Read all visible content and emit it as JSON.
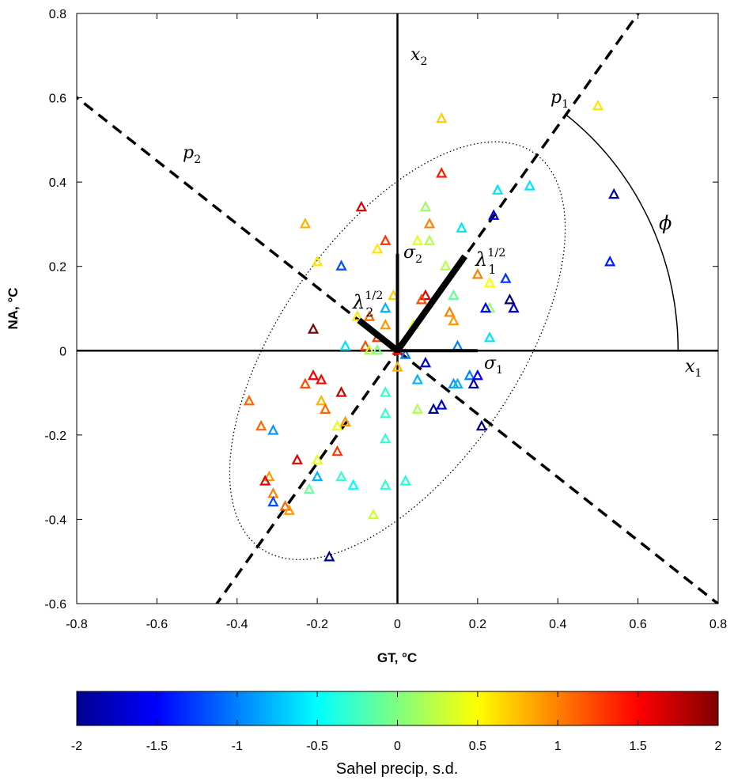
{
  "chart_data": {
    "type": "scatter",
    "xlabel": "GT,  °C",
    "ylabel": "NA,  °C",
    "xlim": [
      -0.8,
      0.8
    ],
    "ylim": [
      -0.6,
      0.8
    ],
    "x_ticks": [
      -0.8,
      -0.6,
      -0.4,
      -0.2,
      0,
      0.2,
      0.4,
      0.6,
      0.8
    ],
    "y_ticks": [
      -0.6,
      -0.4,
      -0.2,
      0,
      0.2,
      0.4,
      0.6,
      0.8
    ],
    "x_tick_labels": [
      "-0.8",
      "-0.6",
      "-0.4",
      "-0.2",
      "0",
      "0.2",
      "0.4",
      "0.6",
      "0.8"
    ],
    "y_tick_labels": [
      "-0.6",
      "-0.4",
      "-0.2",
      "0",
      "0.2",
      "0.4",
      "0.6",
      "0.8"
    ],
    "marker": "triangle",
    "colorbar": {
      "label": "Sahel precip, s.d.",
      "range": [
        -2,
        2
      ],
      "ticks": [
        -2,
        -1.5,
        -1,
        -0.5,
        0,
        0.5,
        1,
        1.5,
        2
      ],
      "tick_labels": [
        "-2",
        "-1.5",
        "-1",
        "-0.5",
        "0",
        "0.5",
        "1",
        "1.5",
        "2"
      ],
      "colormap": "jet"
    },
    "annotations": {
      "x1": "x",
      "x1_sub": "1",
      "x2": "x",
      "x2_sub": "2",
      "p1": "p",
      "p1_sub": "1",
      "p2": "p",
      "p2_sub": "2",
      "sigma1": "σ",
      "sigma1_sub": "1",
      "sigma2": "σ",
      "sigma2_sub": "2",
      "lambda1": "λ",
      "lambda1_sup": "1/2",
      "lambda1_sub": "1",
      "lambda2": "λ",
      "lambda2_sup": "1/2",
      "lambda2_sub": "2",
      "phi": "ϕ"
    },
    "construction": {
      "phi_deg": 53.1,
      "sigma1": 0.2,
      "sigma2": 0.23,
      "lambda1_sqrt": 0.28,
      "lambda2_sqrt": 0.12,
      "ellipse_a": 0.58,
      "ellipse_b": 0.29,
      "phi_arc_radius": 0.7
    },
    "points": [
      {
        "x": 0.5,
        "y": 0.58,
        "c": 0.6
      },
      {
        "x": 0.11,
        "y": 0.55,
        "c": 0.7
      },
      {
        "x": 0.11,
        "y": 0.42,
        "c": 1.4
      },
      {
        "x": 0.54,
        "y": 0.37,
        "c": -1.9
      },
      {
        "x": 0.33,
        "y": 0.39,
        "c": -0.6
      },
      {
        "x": 0.25,
        "y": 0.38,
        "c": -0.6
      },
      {
        "x": 0.24,
        "y": 0.32,
        "c": -1.6
      },
      {
        "x": 0.53,
        "y": 0.21,
        "c": -1.4
      },
      {
        "x": 0.07,
        "y": 0.34,
        "c": 0.1
      },
      {
        "x": -0.09,
        "y": 0.34,
        "c": 1.6
      },
      {
        "x": -0.23,
        "y": 0.3,
        "c": 0.8
      },
      {
        "x": 0.08,
        "y": 0.3,
        "c": 1.0
      },
      {
        "x": 0.16,
        "y": 0.29,
        "c": -0.6
      },
      {
        "x": -0.03,
        "y": 0.26,
        "c": 1.3
      },
      {
        "x": 0.05,
        "y": 0.26,
        "c": 0.4
      },
      {
        "x": 0.08,
        "y": 0.26,
        "c": 0.2
      },
      {
        "x": -0.05,
        "y": 0.24,
        "c": 0.6
      },
      {
        "x": -0.2,
        "y": 0.21,
        "c": 0.6
      },
      {
        "x": -0.14,
        "y": 0.2,
        "c": -1.2
      },
      {
        "x": 0.12,
        "y": 0.2,
        "c": 0.2
      },
      {
        "x": 0.2,
        "y": 0.18,
        "c": 1.0
      },
      {
        "x": 0.27,
        "y": 0.17,
        "c": -1.3
      },
      {
        "x": 0.23,
        "y": 0.16,
        "c": 0.5
      },
      {
        "x": -0.01,
        "y": 0.13,
        "c": 0.7
      },
      {
        "x": 0.07,
        "y": 0.13,
        "c": 1.6
      },
      {
        "x": 0.06,
        "y": 0.12,
        "c": 1.2
      },
      {
        "x": 0.14,
        "y": 0.13,
        "c": -0.1
      },
      {
        "x": -0.03,
        "y": 0.1,
        "c": -0.8
      },
      {
        "x": 0.23,
        "y": 0.1,
        "c": 0.1
      },
      {
        "x": 0.22,
        "y": 0.1,
        "c": -1.5
      },
      {
        "x": 0.29,
        "y": 0.1,
        "c": -1.7
      },
      {
        "x": 0.28,
        "y": 0.12,
        "c": -2.0
      },
      {
        "x": 0.13,
        "y": 0.09,
        "c": 1.0
      },
      {
        "x": 0.14,
        "y": 0.07,
        "c": 0.9
      },
      {
        "x": -0.07,
        "y": 0.08,
        "c": 1.1
      },
      {
        "x": -0.1,
        "y": 0.08,
        "c": 0.6
      },
      {
        "x": -0.03,
        "y": 0.06,
        "c": 0.9
      },
      {
        "x": 0.04,
        "y": 0.06,
        "c": 0.4
      },
      {
        "x": -0.21,
        "y": 0.05,
        "c": 2.0
      },
      {
        "x": -0.05,
        "y": 0.03,
        "c": 1.3
      },
      {
        "x": -0.13,
        "y": 0.01,
        "c": -0.6
      },
      {
        "x": -0.08,
        "y": 0.01,
        "c": 1.2
      },
      {
        "x": 0.15,
        "y": 0.01,
        "c": -1.0
      },
      {
        "x": 0.23,
        "y": 0.03,
        "c": -0.6
      },
      {
        "x": -0.07,
        "y": 0.0,
        "c": 0.2
      },
      {
        "x": -0.05,
        "y": 0.0,
        "c": 0.0
      },
      {
        "x": 0.0,
        "y": 0.0,
        "c": 1.4
      },
      {
        "x": 0.02,
        "y": -0.01,
        "c": -1.0
      },
      {
        "x": 0.07,
        "y": -0.03,
        "c": -1.7
      },
      {
        "x": 0.05,
        "y": -0.07,
        "c": -0.8
      },
      {
        "x": 0.18,
        "y": -0.06,
        "c": -1.0
      },
      {
        "x": 0.2,
        "y": -0.06,
        "c": -1.5
      },
      {
        "x": 0.19,
        "y": -0.08,
        "c": -1.8
      },
      {
        "x": 0.14,
        "y": -0.08,
        "c": -0.9
      },
      {
        "x": 0.15,
        "y": -0.08,
        "c": -0.8
      },
      {
        "x": 0.0,
        "y": -0.04,
        "c": 0.8
      },
      {
        "x": -0.03,
        "y": -0.1,
        "c": -0.3
      },
      {
        "x": -0.21,
        "y": -0.06,
        "c": 1.5
      },
      {
        "x": -0.19,
        "y": -0.07,
        "c": 1.5
      },
      {
        "x": -0.23,
        "y": -0.08,
        "c": 1.2
      },
      {
        "x": -0.14,
        "y": -0.1,
        "c": 1.7
      },
      {
        "x": -0.19,
        "y": -0.12,
        "c": 0.8
      },
      {
        "x": -0.18,
        "y": -0.14,
        "c": 1.1
      },
      {
        "x": -0.37,
        "y": -0.12,
        "c": 1.1
      },
      {
        "x": -0.03,
        "y": -0.15,
        "c": -0.3
      },
      {
        "x": 0.05,
        "y": -0.14,
        "c": 0.2
      },
      {
        "x": 0.09,
        "y": -0.14,
        "c": -1.9
      },
      {
        "x": 0.11,
        "y": -0.13,
        "c": -1.6
      },
      {
        "x": 0.21,
        "y": -0.18,
        "c": -2.0
      },
      {
        "x": -0.13,
        "y": -0.17,
        "c": 0.9
      },
      {
        "x": -0.15,
        "y": -0.18,
        "c": 0.4
      },
      {
        "x": -0.34,
        "y": -0.18,
        "c": 1.1
      },
      {
        "x": -0.31,
        "y": -0.19,
        "c": -0.9
      },
      {
        "x": -0.03,
        "y": -0.21,
        "c": -0.3
      },
      {
        "x": -0.15,
        "y": -0.24,
        "c": 1.3
      },
      {
        "x": -0.25,
        "y": -0.26,
        "c": 1.6
      },
      {
        "x": -0.2,
        "y": -0.26,
        "c": 0.4
      },
      {
        "x": -0.32,
        "y": -0.3,
        "c": 0.9
      },
      {
        "x": -0.2,
        "y": -0.3,
        "c": -0.8
      },
      {
        "x": -0.14,
        "y": -0.3,
        "c": -0.3
      },
      {
        "x": -0.33,
        "y": -0.31,
        "c": 1.6
      },
      {
        "x": -0.22,
        "y": -0.33,
        "c": -0.1
      },
      {
        "x": -0.11,
        "y": -0.32,
        "c": -0.5
      },
      {
        "x": -0.03,
        "y": -0.32,
        "c": -0.3
      },
      {
        "x": 0.02,
        "y": -0.31,
        "c": -0.4
      },
      {
        "x": -0.31,
        "y": -0.34,
        "c": 1.0
      },
      {
        "x": -0.31,
        "y": -0.36,
        "c": -1.2
      },
      {
        "x": -0.28,
        "y": -0.37,
        "c": 1.1
      },
      {
        "x": -0.27,
        "y": -0.38,
        "c": 0.9
      },
      {
        "x": -0.06,
        "y": -0.39,
        "c": 0.3
      },
      {
        "x": -0.17,
        "y": -0.49,
        "c": -1.9
      }
    ]
  }
}
